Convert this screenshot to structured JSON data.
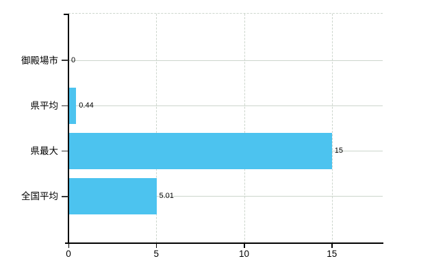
{
  "chart_data": {
    "type": "bar",
    "orientation": "horizontal",
    "title": "",
    "categories": [
      "御殿場市",
      "県平均",
      "県最大",
      "全国平均"
    ],
    "values": [
      0,
      0.44,
      15,
      5.01
    ],
    "value_labels": [
      "0",
      "0.44",
      "15",
      "5.01"
    ],
    "x_ticks": [
      0,
      5,
      10,
      15
    ],
    "x_tick_labels": [
      "0",
      "5",
      "10",
      "15"
    ],
    "xlim": [
      0,
      17.9
    ],
    "grid": true,
    "gridline_style": {
      "horizontal": "solid",
      "vertical": "dashed",
      "top_border": "dashed"
    },
    "legend": false,
    "colors": {
      "bar": "#4cc3ef",
      "grid": "#ccd5cc",
      "axis": "#000000",
      "text": "#000000"
    }
  }
}
